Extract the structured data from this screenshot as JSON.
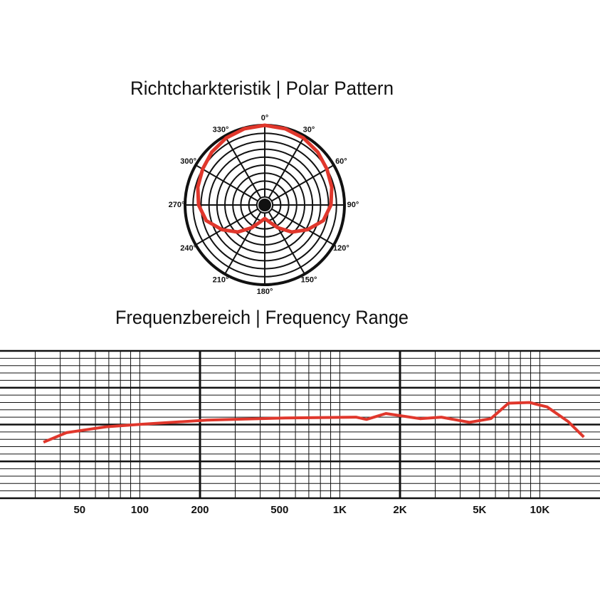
{
  "chart_data": [
    {
      "type": "polar",
      "title": "Richtcharkteristik | Polar Pattern",
      "theta": [
        0,
        15,
        30,
        45,
        60,
        75,
        90,
        105,
        120,
        135,
        150,
        165,
        180,
        195,
        210,
        225,
        240,
        255,
        270,
        285,
        300,
        315,
        330,
        345
      ],
      "series": [
        {
          "color": "#e0372c",
          "values": [
            1,
            0.99,
            0.97,
            0.94,
            0.9,
            0.87,
            0.83,
            0.76,
            0.62,
            0.48,
            0.33,
            0.22,
            0.17,
            0.22,
            0.33,
            0.48,
            0.62,
            0.76,
            0.83,
            0.87,
            0.9,
            0.94,
            0.97,
            0.99
          ]
        }
      ],
      "rlim": [
        0,
        1
      ],
      "thetaticks": [
        {
          "value": 0,
          "label": "0°"
        },
        {
          "value": 30,
          "label": "30°"
        },
        {
          "value": 60,
          "label": "60°"
        },
        {
          "value": 90,
          "label": "90°"
        },
        {
          "value": 120,
          "label": "120°"
        },
        {
          "value": 150,
          "label": "150°"
        },
        {
          "value": 180,
          "label": "180°"
        },
        {
          "value": 210,
          "label": "210°"
        },
        {
          "value": 240,
          "label": "240°"
        },
        {
          "value": 270,
          "label": "270°"
        },
        {
          "value": 300,
          "label": "300°"
        },
        {
          "value": 330,
          "label": "330°"
        }
      ]
    },
    {
      "type": "line",
      "title": "Frequenzbereich | Frequency Range",
      "x": [
        33,
        43,
        68,
        103,
        217,
        532,
        1205,
        1360,
        1700,
        2520,
        3220,
        4450,
        5690,
        6970,
        8890,
        10880,
        13880,
        16600
      ],
      "series": [
        {
          "color": "#e0372c",
          "values": [
            -2.4,
            -1.1,
            -0.3,
            0.05,
            0.6,
            0.9,
            1.0,
            0.7,
            1.5,
            0.8,
            1.0,
            0.3,
            0.8,
            2.9,
            3.0,
            2.4,
            0.4,
            -1.7
          ]
        }
      ],
      "xlim": [
        20,
        20000
      ],
      "ylim": [
        -10,
        10
      ],
      "log_x": true,
      "grid": true,
      "xticks": [
        50,
        100,
        200,
        500,
        {
          "value": 1000,
          "label": "1K"
        },
        {
          "value": 2000,
          "label": "2K"
        },
        {
          "value": 5000,
          "label": "5K"
        },
        {
          "value": 10000,
          "label": "10K"
        }
      ]
    }
  ]
}
